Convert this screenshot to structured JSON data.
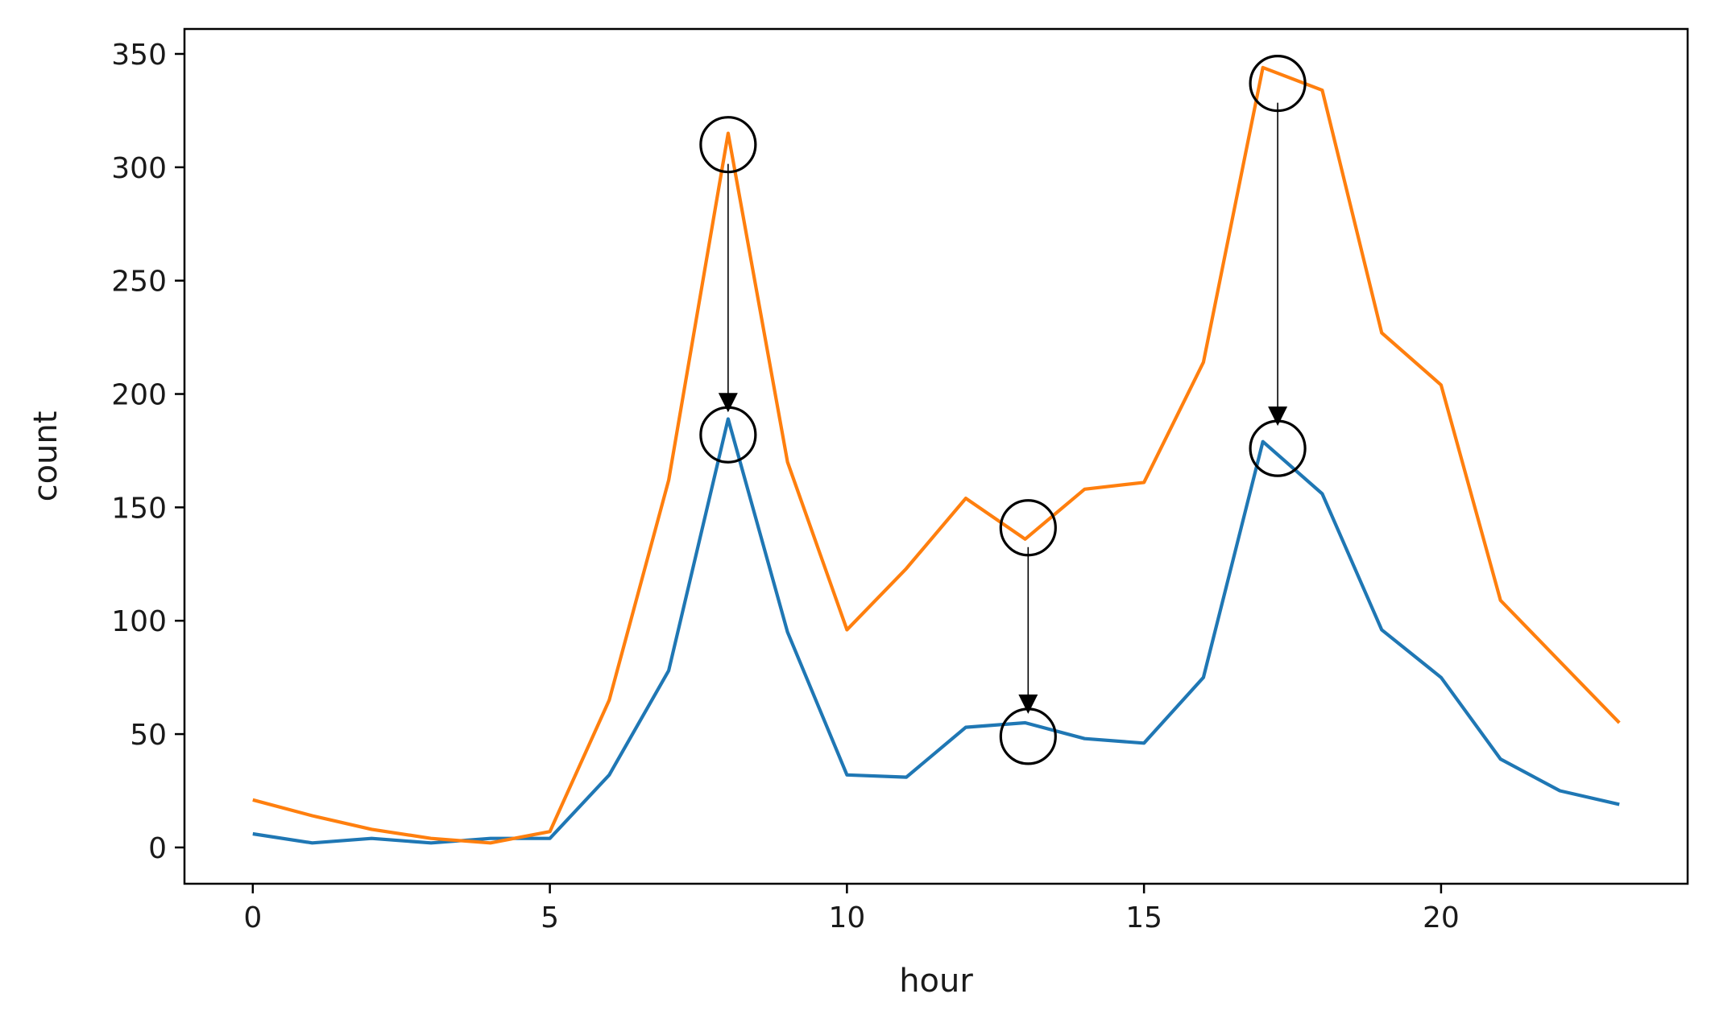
{
  "chart_data": {
    "type": "line",
    "xlabel": "hour",
    "ylabel": "count",
    "xlim": [
      -1.15,
      24.15
    ],
    "ylim": [
      -16,
      361
    ],
    "xticks": [
      0,
      5,
      10,
      15,
      20
    ],
    "yticks": [
      0,
      50,
      100,
      150,
      200,
      250,
      300,
      350
    ],
    "grid": false,
    "legend": "none",
    "x": [
      0,
      1,
      2,
      3,
      4,
      5,
      6,
      7,
      8,
      9,
      10,
      11,
      12,
      13,
      14,
      15,
      16,
      17,
      18,
      19,
      20,
      21,
      22,
      23
    ],
    "series": [
      {
        "color": "#1f77b4",
        "values": [
          6,
          2,
          4,
          2,
          4,
          4,
          32,
          78,
          189,
          95,
          32,
          31,
          53,
          55,
          48,
          46,
          75,
          179,
          156,
          96,
          75,
          39,
          25,
          19
        ]
      },
      {
        "color": "#ff7f0e",
        "values": [
          21,
          14,
          8,
          4,
          2,
          7,
          65,
          162,
          315,
          170,
          96,
          123,
          154,
          136,
          158,
          161,
          214,
          344,
          334,
          227,
          204,
          109,
          82,
          55
        ]
      }
    ],
    "annotations": [
      {
        "from": {
          "x": 8.0,
          "y": 310
        },
        "to": {
          "x": 8.0,
          "y": 182
        }
      },
      {
        "from": {
          "x": 13.05,
          "y": 141
        },
        "to": {
          "x": 13.05,
          "y": 49
        }
      },
      {
        "from": {
          "x": 17.25,
          "y": 337
        },
        "to": {
          "x": 17.25,
          "y": 176
        }
      }
    ],
    "annotation_style": {
      "marker": "open-circle",
      "arrow": "down",
      "color": "#000000"
    }
  }
}
